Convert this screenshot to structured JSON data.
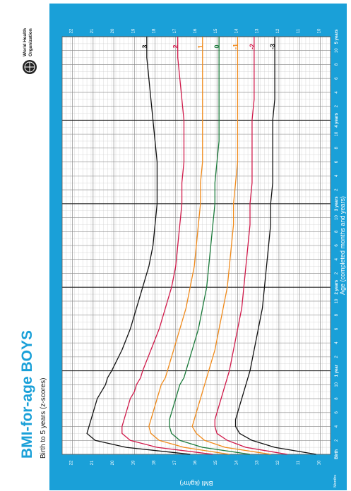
{
  "page": {
    "title": "BMI-for-age BOYS",
    "subtitle": "Birth to 5 years (z-scores)",
    "org_line1": "World Health",
    "org_line2": "Organization",
    "background_color": "#1aa0d8"
  },
  "chart_data": {
    "type": "line",
    "title": "BMI-for-age BOYS",
    "subtitle": "Birth to 5 years (z-scores)",
    "xlabel": "Age (completed months and years)",
    "ylabel": "BMI (kg/m²)",
    "xlim": [
      0,
      60
    ],
    "ylim": [
      9.5,
      22.5
    ],
    "grid": true,
    "orientation": "rotated-90",
    "x_start_label": "Birth",
    "x_unit_label": "Months",
    "year_labels": [
      {
        "month": 12,
        "label": "1 year"
      },
      {
        "month": 24,
        "label": "2 years"
      },
      {
        "month": 36,
        "label": "3 years"
      },
      {
        "month": 48,
        "label": "4 years"
      },
      {
        "month": 60,
        "label": "5 years"
      }
    ],
    "month_ticks": [
      {
        "month": 2,
        "label": "2"
      },
      {
        "month": 4,
        "label": "4"
      },
      {
        "month": 6,
        "label": "6"
      },
      {
        "month": 8,
        "label": "8"
      },
      {
        "month": 10,
        "label": "10"
      },
      {
        "month": 14,
        "label": "2"
      },
      {
        "month": 16,
        "label": "4"
      },
      {
        "month": 18,
        "label": "6"
      },
      {
        "month": 20,
        "label": "8"
      },
      {
        "month": 22,
        "label": "10"
      },
      {
        "month": 26,
        "label": "2"
      },
      {
        "month": 28,
        "label": "4"
      },
      {
        "month": 30,
        "label": "6"
      },
      {
        "month": 32,
        "label": "8"
      },
      {
        "month": 34,
        "label": "10"
      },
      {
        "month": 38,
        "label": "2"
      },
      {
        "month": 40,
        "label": "4"
      },
      {
        "month": 42,
        "label": "6"
      },
      {
        "month": 44,
        "label": "8"
      },
      {
        "month": 46,
        "label": "10"
      },
      {
        "month": 50,
        "label": "2"
      },
      {
        "month": 52,
        "label": "4"
      },
      {
        "month": 54,
        "label": "6"
      },
      {
        "month": 56,
        "label": "8"
      },
      {
        "month": 58,
        "label": "10"
      }
    ],
    "y_ticks": [
      10,
      11,
      12,
      13,
      14,
      15,
      16,
      17,
      18,
      19,
      20,
      21,
      22
    ],
    "x": [
      0,
      1,
      2,
      3,
      4,
      5,
      6,
      7,
      8,
      9,
      10,
      11,
      12,
      15,
      18,
      21,
      24,
      27,
      30,
      33,
      36,
      39,
      42,
      45,
      48,
      51,
      54,
      57,
      60
    ],
    "series": [
      {
        "name": "3",
        "color": "#111111",
        "values": [
          16.3,
          19.4,
          20.9,
          21.3,
          21.2,
          21.1,
          21.0,
          20.9,
          20.8,
          20.6,
          20.4,
          20.3,
          20.1,
          19.6,
          19.2,
          18.9,
          18.6,
          18.3,
          18.1,
          18.0,
          17.9,
          17.9,
          17.9,
          18.0,
          18.1,
          18.2,
          18.3,
          18.4,
          18.4
        ]
      },
      {
        "name": "2",
        "color": "#d01a4a",
        "values": [
          15.2,
          17.9,
          19.2,
          19.6,
          19.6,
          19.5,
          19.4,
          19.3,
          19.2,
          19.0,
          18.9,
          18.7,
          18.6,
          18.2,
          17.8,
          17.5,
          17.2,
          17.0,
          16.9,
          16.8,
          16.7,
          16.7,
          16.6,
          16.6,
          16.6,
          16.7,
          16.8,
          16.9,
          16.9
        ]
      },
      {
        "name": "1",
        "color": "#f08a1a",
        "values": [
          14.4,
          16.6,
          17.8,
          18.2,
          18.3,
          18.2,
          18.1,
          18.0,
          17.9,
          17.8,
          17.7,
          17.5,
          17.4,
          17.1,
          16.8,
          16.5,
          16.3,
          16.1,
          16.0,
          15.9,
          15.8,
          15.8,
          15.7,
          15.7,
          15.7,
          15.7,
          15.7,
          15.7,
          15.7
        ]
      },
      {
        "name": "0",
        "color": "#1a7a3a",
        "values": [
          13.4,
          15.7,
          16.8,
          17.2,
          17.3,
          17.3,
          17.2,
          17.1,
          17.0,
          16.9,
          16.8,
          16.6,
          16.5,
          16.2,
          15.9,
          15.7,
          15.5,
          15.4,
          15.3,
          15.2,
          15.1,
          15.1,
          15.0,
          14.9,
          14.9,
          14.9,
          14.9,
          14.9,
          14.9
        ]
      },
      {
        "name": "-1",
        "color": "#f08a1a",
        "values": [
          12.4,
          14.6,
          15.6,
          16.0,
          16.2,
          16.1,
          16.0,
          15.9,
          15.8,
          15.7,
          15.6,
          15.5,
          15.4,
          15.1,
          14.9,
          14.7,
          14.5,
          14.4,
          14.3,
          14.2,
          14.2,
          14.1,
          14.0,
          14.0,
          14.0,
          14.0,
          14.0,
          14.0,
          14.0
        ]
      },
      {
        "name": "-2",
        "color": "#d01a4a",
        "values": [
          11.6,
          13.6,
          14.5,
          15.0,
          15.1,
          15.1,
          15.0,
          14.9,
          14.8,
          14.7,
          14.6,
          14.5,
          14.4,
          14.2,
          14.0,
          13.8,
          13.7,
          13.6,
          13.5,
          13.4,
          13.4,
          13.3,
          13.3,
          13.3,
          13.3,
          13.2,
          13.2,
          13.2,
          13.2
        ]
      },
      {
        "name": "-3",
        "color": "#111111",
        "values": [
          10.2,
          12.2,
          13.3,
          13.9,
          14.1,
          14.1,
          14.0,
          13.9,
          13.8,
          13.7,
          13.6,
          13.5,
          13.4,
          13.2,
          13.0,
          12.8,
          12.7,
          12.6,
          12.5,
          12.4,
          12.4,
          12.3,
          12.3,
          12.3,
          12.3,
          12.2,
          12.2,
          12.2,
          12.2
        ]
      }
    ]
  }
}
